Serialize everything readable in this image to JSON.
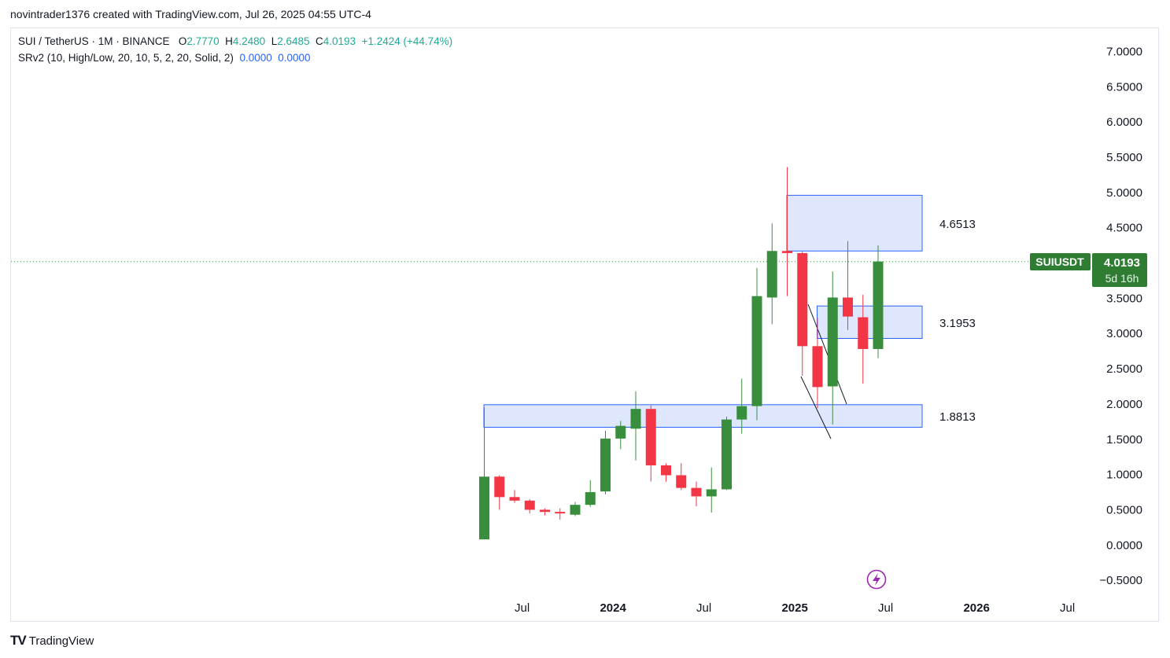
{
  "header": {
    "text": "novintrader1376 created with TradingView.com, Jul 26, 2025 04:55 UTC-4"
  },
  "legend": {
    "symbol": "SUI / TetherUS · 1M · BINANCE",
    "o_label": "O",
    "o_value": "2.7770",
    "h_label": "H",
    "h_value": "4.2480",
    "l_label": "L",
    "l_value": "2.6485",
    "c_label": "C",
    "c_value": "4.0193",
    "change": "+1.2424 (+44.74%)",
    "indicator": "SRv2 (10, High/Low, 20, 10, 5, 2, 20, Solid, 2)",
    "ind_v1": "0.0000",
    "ind_v2": "0.0000"
  },
  "price_tag": {
    "symbol": "SUIUSDT",
    "price": "4.0193",
    "countdown": "5d 16h"
  },
  "footer": {
    "brand": "TradingView",
    "logo": "TV"
  },
  "colors": {
    "up": "#388e3c",
    "down": "#f23645",
    "zone_fill": "#dbe4ff",
    "zone_border": "#2962ff",
    "tag": "#2e7d32"
  },
  "chart_data": {
    "type": "candlestick",
    "y_ticks": [
      "7.0000",
      "6.5000",
      "6.0000",
      "5.5000",
      "5.0000",
      "4.5000",
      "4.0000",
      "3.5000",
      "3.0000",
      "2.5000",
      "2.0000",
      "1.5000",
      "1.0000",
      "0.5000",
      "0.0000",
      "−0.5000"
    ],
    "y_tick_values": [
      7,
      6.5,
      6,
      5.5,
      5,
      4.5,
      4,
      3.5,
      3,
      2.5,
      2,
      1.5,
      1,
      0.5,
      0,
      -0.5
    ],
    "ylim": [
      -0.7,
      7.2
    ],
    "x_ticks": [
      {
        "label": "Jul",
        "index": 2,
        "bold": false
      },
      {
        "label": "2024",
        "index": 8,
        "bold": true
      },
      {
        "label": "Jul",
        "index": 14,
        "bold": false
      },
      {
        "label": "2025",
        "index": 20,
        "bold": true
      },
      {
        "label": "Jul",
        "index": 26,
        "bold": false
      },
      {
        "label": "2026",
        "index": 32,
        "bold": true
      },
      {
        "label": "Jul",
        "index": 38,
        "bold": false
      }
    ],
    "candles": [
      {
        "d": "2023-05",
        "o": 0.08,
        "h": 1.95,
        "l": 0.08,
        "c": 0.97
      },
      {
        "d": "2023-06",
        "o": 0.97,
        "h": 0.99,
        "l": 0.5,
        "c": 0.68
      },
      {
        "d": "2023-07",
        "o": 0.68,
        "h": 0.78,
        "l": 0.6,
        "c": 0.63
      },
      {
        "d": "2023-08",
        "o": 0.63,
        "h": 0.65,
        "l": 0.45,
        "c": 0.5
      },
      {
        "d": "2023-09",
        "o": 0.5,
        "h": 0.52,
        "l": 0.42,
        "c": 0.47
      },
      {
        "d": "2023-10",
        "o": 0.47,
        "h": 0.52,
        "l": 0.36,
        "c": 0.45
      },
      {
        "d": "2023-11",
        "o": 0.43,
        "h": 0.61,
        "l": 0.41,
        "c": 0.57
      },
      {
        "d": "2023-12",
        "o": 0.57,
        "h": 0.92,
        "l": 0.54,
        "c": 0.75
      },
      {
        "d": "2024-01",
        "o": 0.76,
        "h": 1.62,
        "l": 0.72,
        "c": 1.51
      },
      {
        "d": "2024-02",
        "o": 1.51,
        "h": 1.76,
        "l": 1.36,
        "c": 1.69
      },
      {
        "d": "2024-03",
        "o": 1.65,
        "h": 2.18,
        "l": 1.2,
        "c": 1.93
      },
      {
        "d": "2024-04",
        "o": 1.93,
        "h": 1.98,
        "l": 0.9,
        "c": 1.13
      },
      {
        "d": "2024-05",
        "o": 1.13,
        "h": 1.16,
        "l": 0.9,
        "c": 0.99
      },
      {
        "d": "2024-06",
        "o": 0.99,
        "h": 1.16,
        "l": 0.78,
        "c": 0.81
      },
      {
        "d": "2024-07",
        "o": 0.81,
        "h": 0.9,
        "l": 0.55,
        "c": 0.69
      },
      {
        "d": "2024-08",
        "o": 0.69,
        "h": 1.1,
        "l": 0.46,
        "c": 0.79
      },
      {
        "d": "2024-09",
        "o": 0.79,
        "h": 1.82,
        "l": 0.78,
        "c": 1.78
      },
      {
        "d": "2024-10",
        "o": 1.78,
        "h": 2.36,
        "l": 1.58,
        "c": 1.97
      },
      {
        "d": "2024-11",
        "o": 1.97,
        "h": 3.93,
        "l": 1.77,
        "c": 3.53
      },
      {
        "d": "2024-12",
        "o": 3.51,
        "h": 4.56,
        "l": 3.13,
        "c": 4.17
      },
      {
        "d": "2025-01",
        "o": 4.17,
        "h": 5.36,
        "l": 3.53,
        "c": 4.14
      },
      {
        "d": "2025-02",
        "o": 4.14,
        "h": 4.16,
        "l": 2.4,
        "c": 2.82
      },
      {
        "d": "2025-03",
        "o": 2.82,
        "h": 3.22,
        "l": 1.94,
        "c": 2.24
      },
      {
        "d": "2025-04",
        "o": 2.25,
        "h": 3.88,
        "l": 1.71,
        "c": 3.51
      },
      {
        "d": "2025-05",
        "o": 3.51,
        "h": 4.31,
        "l": 3.05,
        "c": 3.24
      },
      {
        "d": "2025-06",
        "o": 3.23,
        "h": 3.55,
        "l": 2.29,
        "c": 2.78
      },
      {
        "d": "2025-07",
        "o": 2.78,
        "h": 4.25,
        "l": 2.65,
        "c": 4.02
      }
    ],
    "sr_zones": [
      {
        "label": "4.6513",
        "start_index": 20,
        "end_index": 29,
        "top": 4.96,
        "bottom": 4.17
      },
      {
        "label": "3.1953",
        "start_index": 22,
        "end_index": 29,
        "top": 3.39,
        "bottom": 2.93
      },
      {
        "label": "1.8813",
        "start_index": 0,
        "end_index": 29,
        "top": 1.99,
        "bottom": 1.67
      }
    ],
    "last_price": 4.0193
  }
}
